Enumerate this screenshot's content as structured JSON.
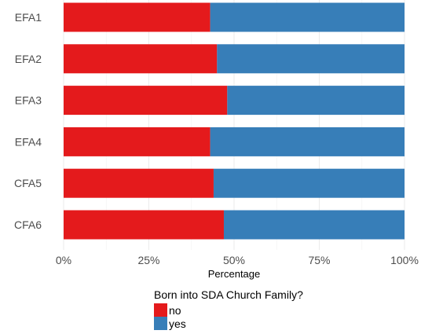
{
  "chart_data": {
    "type": "bar",
    "orientation": "horizontal",
    "stacked": true,
    "categories": [
      "EFA1",
      "EFA2",
      "EFA3",
      "EFA4",
      "CFA5",
      "CFA6"
    ],
    "series": [
      {
        "name": "no",
        "color": "#E41A1C",
        "values": [
          43,
          45,
          48,
          43,
          44,
          47
        ]
      },
      {
        "name": "yes",
        "color": "#377EB8",
        "values": [
          57,
          55,
          52,
          57,
          56,
          53
        ]
      }
    ],
    "xlabel": "Percentage",
    "ylabel": "",
    "xlim": [
      0,
      100
    ],
    "xticks": [
      "0%",
      "25%",
      "50%",
      "75%",
      "100%"
    ],
    "grid": true,
    "legend": {
      "title": "Born into SDA Church Family?",
      "placement": "bottom"
    }
  }
}
